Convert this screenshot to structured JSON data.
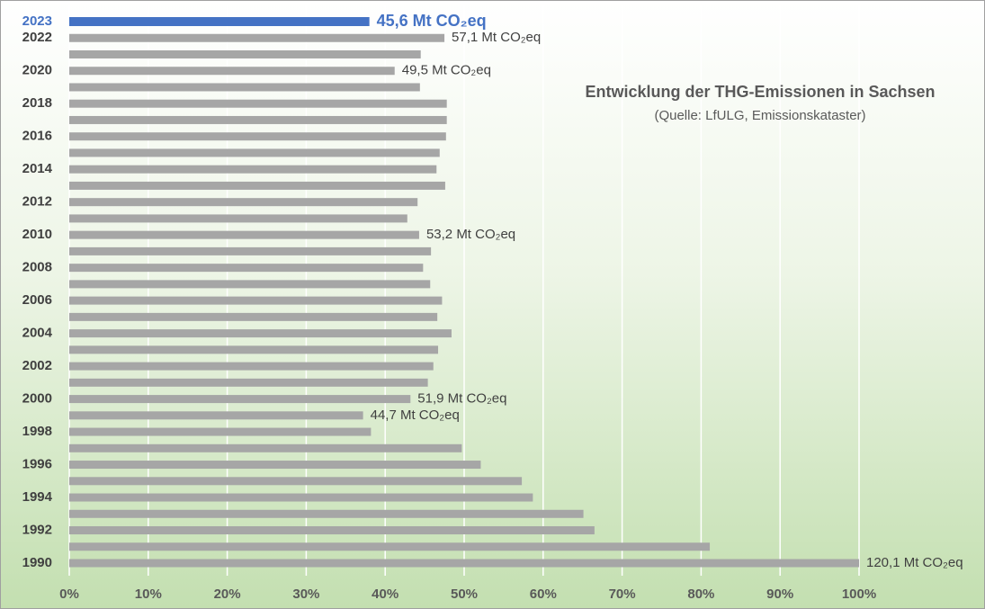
{
  "chart_data": {
    "type": "hbar",
    "title": "Entwicklung der THG-Emissionen in Sachsen",
    "subtitle": "(Quelle: LfULG, Emissionskataster)",
    "categories": [
      "2023",
      "2022",
      null,
      "2020",
      null,
      "2018",
      null,
      "2016",
      null,
      "2014",
      null,
      "2012",
      null,
      "2010",
      null,
      "2008",
      null,
      "2006",
      null,
      "2004",
      null,
      "2002",
      null,
      "2000",
      null,
      "1998",
      null,
      "1996",
      null,
      "1994",
      null,
      "1992",
      null,
      "1990"
    ],
    "values": [
      38.0,
      47.5,
      44.5,
      41.2,
      44.4,
      47.8,
      47.8,
      47.7,
      46.9,
      46.5,
      47.6,
      44.1,
      42.8,
      44.3,
      45.8,
      44.8,
      45.7,
      47.2,
      46.6,
      48.4,
      46.7,
      46.1,
      45.4,
      43.2,
      37.2,
      38.2,
      49.7,
      52.1,
      57.3,
      58.7,
      65.1,
      66.5,
      81.1,
      100
    ],
    "value_labels": [
      "45,6 Mt CO₂eq",
      "57,1 Mt CO₂eq",
      null,
      "49,5 Mt CO₂eq",
      null,
      null,
      null,
      null,
      null,
      null,
      null,
      null,
      null,
      "53,2 Mt CO₂eq",
      null,
      null,
      null,
      null,
      null,
      null,
      null,
      null,
      null,
      "51,9 Mt CO₂eq",
      "44,7 Mt CO₂eq",
      null,
      null,
      null,
      null,
      null,
      null,
      null,
      null,
      "120,1 Mt CO₂eq"
    ],
    "colors": [
      "#4472c4",
      "#a6a6a6",
      "#a6a6a6",
      "#a6a6a6",
      "#a6a6a6",
      "#a6a6a6",
      "#a6a6a6",
      "#a6a6a6",
      "#a6a6a6",
      "#a6a6a6",
      "#a6a6a6",
      "#a6a6a6",
      "#a6a6a6",
      "#a6a6a6",
      "#a6a6a6",
      "#a6a6a6",
      "#a6a6a6",
      "#a6a6a6",
      "#a6a6a6",
      "#a6a6a6",
      "#a6a6a6",
      "#a6a6a6",
      "#a6a6a6",
      "#a6a6a6",
      "#a6a6a6",
      "#a6a6a6",
      "#a6a6a6",
      "#a6a6a6",
      "#a6a6a6",
      "#a6a6a6",
      "#a6a6a6",
      "#a6a6a6",
      "#a6a6a6",
      "#a6a6a6"
    ],
    "xlim": [
      0,
      100
    ],
    "xticks": [
      {
        "value": 0,
        "label": "0%"
      },
      {
        "value": 10,
        "label": "10%"
      },
      {
        "value": 20,
        "label": "20%"
      },
      {
        "value": 30,
        "label": "30%"
      },
      {
        "value": 40,
        "label": "40%"
      },
      {
        "value": 50,
        "label": "50%"
      },
      {
        "value": 60,
        "label": "60%"
      },
      {
        "value": 70,
        "label": "70%"
      },
      {
        "value": 80,
        "label": "80%"
      },
      {
        "value": 90,
        "label": "90%"
      },
      {
        "value": 100,
        "label": "100%"
      }
    ],
    "grid": true
  }
}
